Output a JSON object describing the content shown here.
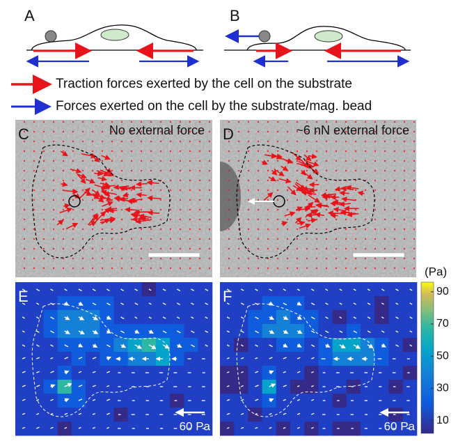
{
  "panels": {
    "a": {
      "label": "A"
    },
    "b": {
      "label": "B"
    },
    "c": {
      "label": "C",
      "caption": "No external force"
    },
    "d": {
      "label": "D",
      "caption": "~6 nN external force"
    },
    "e": {
      "label": "E",
      "scale": "60 Pa"
    },
    "f": {
      "label": "F",
      "scale": "60 Pa"
    }
  },
  "legend": [
    {
      "text": "Traction forces exerted by the cell on the substrate",
      "color": "#e8141b"
    },
    {
      "text": "Forces exerted on the cell by the substrate/mag. bead",
      "color": "#1f2fd0"
    }
  ],
  "colorbar": {
    "unit": "(Pa)",
    "lim": [
      2,
      96
    ],
    "ticks": [
      90,
      70,
      50,
      30,
      10
    ]
  }
}
